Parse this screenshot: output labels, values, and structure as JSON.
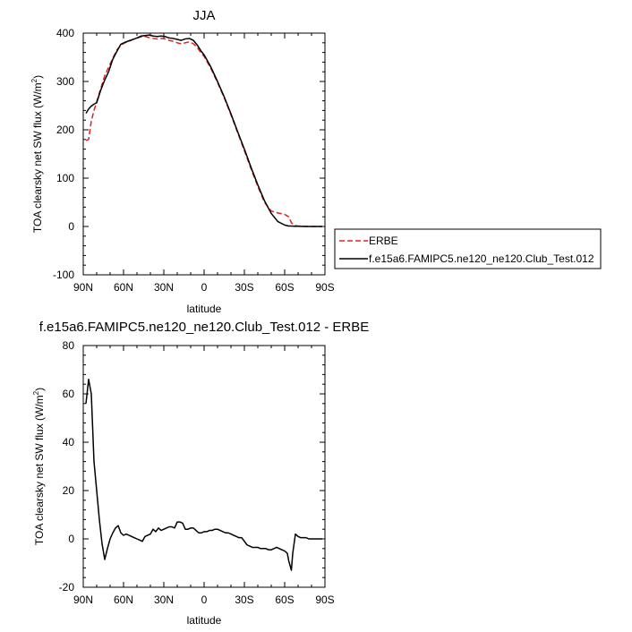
{
  "chart_data": [
    {
      "type": "line",
      "title": "JJA",
      "xlabel": "latitude",
      "ylabel": "TOA clearsky net SW flux (W/m",
      "ylabel_sup": "2",
      "ylabel_end": ")",
      "xlim": [
        90,
        -90
      ],
      "ylim": [
        -100,
        400
      ],
      "xticks": [
        90,
        60,
        30,
        0,
        -30,
        -60,
        -90
      ],
      "xtick_labels": [
        "90N",
        "60N",
        "30N",
        "0",
        "30S",
        "60S",
        "90S"
      ],
      "yticks": [
        -100,
        0,
        100,
        200,
        300,
        400
      ],
      "ytick_labels": [
        "-100",
        "0",
        "100",
        "200",
        "300",
        "400"
      ],
      "grid": false,
      "legend_position": "right-bottom",
      "series": [
        {
          "name": "ERBE",
          "color": "#e02020",
          "dash": "dashed",
          "x": [
            88,
            86,
            84,
            82,
            80,
            77,
            74,
            71,
            68,
            65,
            62,
            59,
            56,
            53,
            50,
            47,
            44,
            41,
            38,
            35,
            32,
            29,
            26,
            23,
            20,
            17,
            14,
            11,
            8,
            5,
            2,
            0,
            -5,
            -10,
            -15,
            -20,
            -25,
            -30,
            -35,
            -40,
            -45,
            -50,
            -55,
            -60,
            -63,
            -65,
            -67,
            -70,
            -75,
            -80,
            -85,
            -88
          ],
          "y": [
            178,
            180,
            218,
            240,
            258,
            285,
            312,
            330,
            348,
            365,
            375,
            380,
            383,
            387,
            390,
            392,
            393,
            391,
            389,
            388,
            389,
            388,
            385,
            383,
            380,
            378,
            380,
            382,
            378,
            370,
            358,
            352,
            327,
            298,
            266,
            231,
            194,
            157,
            119,
            83,
            50,
            32,
            28,
            25,
            20,
            8,
            2,
            1,
            0.5,
            0,
            0,
            0
          ]
        },
        {
          "name": "f.e15a6.FAMIPC5.ne120_ne120.Club_Test.012",
          "color": "#000000",
          "dash": "solid",
          "x": [
            88,
            86,
            84,
            82,
            80,
            77,
            74,
            71,
            68,
            65,
            62,
            59,
            56,
            53,
            50,
            47,
            44,
            41,
            38,
            35,
            32,
            29,
            26,
            23,
            20,
            17,
            14,
            11,
            8,
            5,
            2,
            0,
            -5,
            -10,
            -15,
            -20,
            -25,
            -30,
            -35,
            -40,
            -45,
            -50,
            -55,
            -60,
            -63,
            -65,
            -67,
            -70,
            -75,
            -80,
            -85,
            -88
          ],
          "y": [
            234,
            243,
            249,
            253,
            256,
            282,
            303,
            321,
            346,
            362,
            377,
            381,
            384,
            387,
            390,
            394,
            395,
            396,
            394,
            393,
            394,
            393,
            390,
            389,
            387,
            385,
            388,
            389,
            385,
            375,
            362,
            355,
            330,
            300,
            268,
            233,
            196,
            160,
            122,
            86,
            53,
            27,
            10,
            3,
            1,
            1,
            0.5,
            0.5,
            0,
            0,
            0,
            0
          ]
        }
      ]
    },
    {
      "type": "line",
      "title": "f.e15a6.FAMIPC5.ne120_ne120.Club_Test.012 - ERBE",
      "xlabel": "latitude",
      "ylabel": "TOA clearsky net SW flux (W/m",
      "ylabel_sup": "2",
      "ylabel_end": ")",
      "xlim": [
        90,
        -90
      ],
      "ylim": [
        -20,
        80
      ],
      "xticks": [
        90,
        60,
        30,
        0,
        -30,
        -60,
        -90
      ],
      "xtick_labels": [
        "90N",
        "60N",
        "30N",
        "0",
        "30S",
        "60S",
        "90S"
      ],
      "yticks": [
        -20,
        0,
        20,
        40,
        60,
        80
      ],
      "ytick_labels": [
        "-20",
        "0",
        "20",
        "40",
        "60",
        "80"
      ],
      "grid": false,
      "series": [
        {
          "color": "#000000",
          "x": [
            88,
            86,
            84,
            82,
            80,
            78,
            76,
            74,
            72,
            70,
            68,
            66,
            64,
            62,
            60,
            58,
            56,
            54,
            52,
            50,
            48,
            46,
            44,
            42,
            40,
            38,
            36,
            34,
            32,
            30,
            28,
            26,
            24,
            22,
            20,
            18,
            16,
            14,
            12,
            10,
            8,
            6,
            4,
            2,
            0,
            -2,
            -4,
            -6,
            -8,
            -10,
            -12,
            -14,
            -16,
            -18,
            -20,
            -22,
            -24,
            -26,
            -28,
            -30,
            -32,
            -34,
            -36,
            -38,
            -40,
            -42,
            -44,
            -46,
            -48,
            -50,
            -52,
            -54,
            -56,
            -58,
            -60,
            -62,
            -63,
            -64,
            -65,
            -66,
            -68,
            -70,
            -72,
            -74,
            -76,
            -78,
            -80,
            -82,
            -84,
            -86,
            -88
          ],
          "y": [
            56,
            66,
            60,
            32,
            20,
            8,
            -2,
            -8.5,
            -4,
            0,
            2.5,
            4.5,
            5.5,
            2.5,
            1.5,
            2,
            1.5,
            1,
            0.5,
            0,
            -0.5,
            -1,
            1,
            1.5,
            2,
            4,
            3,
            4.5,
            3.5,
            4,
            4.5,
            5,
            5,
            4.5,
            7,
            7,
            6.5,
            4,
            4,
            4.5,
            4.5,
            3.5,
            2.5,
            2.5,
            3,
            3,
            3.5,
            3.5,
            4,
            4,
            3.5,
            3,
            2.5,
            2.5,
            2,
            1.5,
            1,
            0.5,
            0.5,
            -1,
            -2.5,
            -3,
            -3.5,
            -3.5,
            -3.5,
            -4,
            -4,
            -4,
            -4.5,
            -4.5,
            -4,
            -3.5,
            -4,
            -4.5,
            -5,
            -6,
            -9,
            -11,
            -13,
            -6,
            2,
            1,
            0.5,
            0.5,
            0.5,
            0,
            0,
            0,
            0,
            0,
            0
          ]
        }
      ]
    }
  ]
}
